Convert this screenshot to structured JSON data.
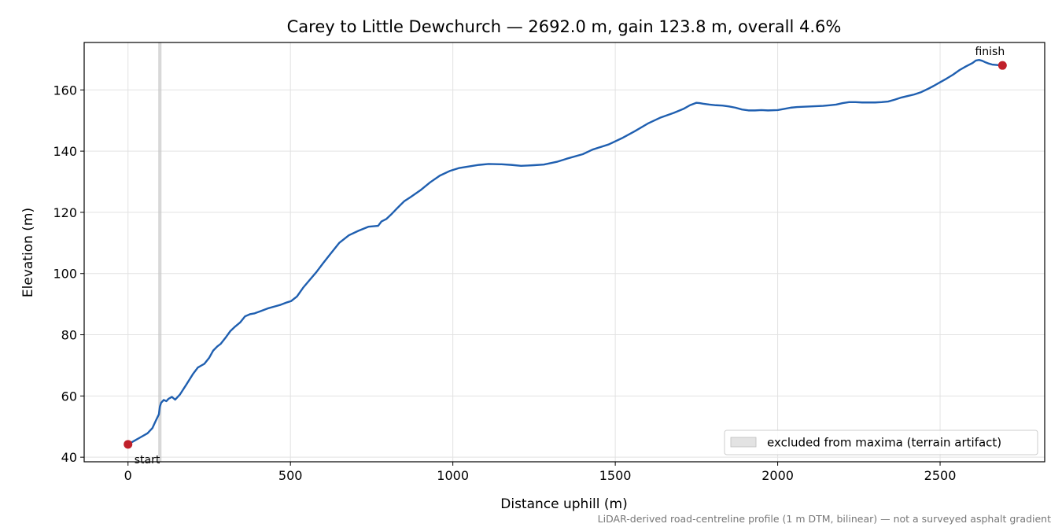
{
  "chart_data": {
    "type": "line",
    "title": "Carey to Little Dewchurch — 2692.0 m, gain 123.8 m, overall 4.6%",
    "xlabel": "Distance uphill (m)",
    "ylabel": "Elevation (m)",
    "xlim": [
      -135,
      2822
    ],
    "ylim": [
      38.5,
      175.5
    ],
    "xticks": [
      0,
      500,
      1000,
      1500,
      2000,
      2500
    ],
    "yticks": [
      40,
      60,
      80,
      100,
      120,
      140,
      160
    ],
    "grid": true,
    "series": [
      {
        "color": "#1f5fb0",
        "x": [
          0,
          20,
          40,
          60,
          75,
          85,
          95,
          98,
          102,
          110,
          118,
          125,
          135,
          145,
          160,
          180,
          200,
          215,
          235,
          250,
          262,
          275,
          285,
          300,
          315,
          330,
          345,
          360,
          375,
          390,
          410,
          430,
          450,
          470,
          490,
          502,
          520,
          540,
          560,
          580,
          600,
          620,
          650,
          680,
          710,
          740,
          770,
          780,
          795,
          810,
          830,
          850,
          870,
          900,
          930,
          960,
          990,
          1020,
          1050,
          1080,
          1110,
          1150,
          1180,
          1210,
          1230,
          1250,
          1280,
          1320,
          1350,
          1400,
          1430,
          1480,
          1520,
          1560,
          1600,
          1640,
          1680,
          1710,
          1730,
          1750,
          1760,
          1770,
          1790,
          1810,
          1830,
          1850,
          1870,
          1890,
          1910,
          1930,
          1950,
          1970,
          2000,
          2020,
          2040,
          2060,
          2080,
          2100,
          2120,
          2140,
          2160,
          2180,
          2200,
          2220,
          2240,
          2260,
          2280,
          2300,
          2320,
          2340,
          2360,
          2380,
          2400,
          2420,
          2440,
          2460,
          2480,
          2500,
          2520,
          2540,
          2560,
          2580,
          2600,
          2610,
          2620,
          2630,
          2640,
          2650,
          2660,
          2670,
          2680,
          2692
        ],
        "y": [
          44.2,
          45.4,
          46.6,
          47.8,
          49.5,
          51.8,
          54.0,
          56.5,
          57.8,
          58.7,
          58.3,
          59.1,
          59.7,
          58.8,
          60.5,
          63.8,
          67.2,
          69.3,
          70.5,
          72.5,
          74.8,
          76.2,
          77.0,
          79.0,
          81.2,
          82.7,
          84.0,
          86.0,
          86.7,
          87.0,
          87.8,
          88.6,
          89.2,
          89.8,
          90.6,
          91.0,
          92.5,
          95.5,
          98.0,
          100.5,
          103.3,
          106.0,
          110.0,
          112.5,
          114.0,
          115.3,
          115.6,
          117.0,
          117.8,
          119.3,
          121.5,
          123.6,
          125.0,
          127.2,
          129.8,
          132.0,
          133.5,
          134.5,
          135.0,
          135.5,
          135.8,
          135.7,
          135.5,
          135.2,
          135.3,
          135.4,
          135.6,
          136.5,
          137.5,
          139.0,
          140.5,
          142.2,
          144.2,
          146.5,
          149.0,
          151.0,
          152.5,
          153.8,
          155.0,
          155.8,
          155.7,
          155.5,
          155.2,
          155.0,
          154.9,
          154.6,
          154.2,
          153.6,
          153.3,
          153.3,
          153.4,
          153.3,
          153.4,
          153.8,
          154.2,
          154.4,
          154.5,
          154.6,
          154.7,
          154.8,
          155.0,
          155.2,
          155.7,
          156.0,
          156.0,
          155.9,
          155.9,
          155.9,
          156.0,
          156.2,
          156.8,
          157.5,
          158.0,
          158.5,
          159.2,
          160.2,
          161.3,
          162.5,
          163.7,
          165.0,
          166.5,
          167.7,
          168.8,
          169.6,
          169.8,
          169.5,
          169.0,
          168.6,
          168.3,
          168.2,
          168.1,
          168.0
        ]
      }
    ],
    "markers": [
      {
        "label": "start",
        "x": 0,
        "y": 44.2,
        "color": "#c0202a"
      },
      {
        "label": "finish",
        "x": 2692,
        "y": 168.0,
        "color": "#c0202a"
      }
    ],
    "excluded_region": {
      "x": [
        93,
        103
      ],
      "color": "#c8c8c8"
    },
    "legend": {
      "placement": "lower-right",
      "entries": [
        "excluded from maxima (terrain artifact)"
      ]
    },
    "footnote": "LiDAR-derived road-centreline profile (1 m DTM, bilinear) — not a surveyed asphalt gradient"
  }
}
